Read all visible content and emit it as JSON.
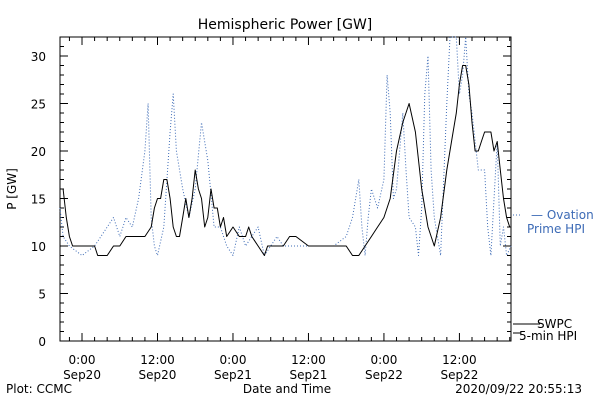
{
  "chart_data": {
    "type": "line",
    "title": "Hemispheric Power [GW]",
    "xlabel": "Date and Time",
    "ylabel": "P [GW]",
    "ylim": [
      0,
      32
    ],
    "xlim_hours": [
      -3.5,
      68.2
    ],
    "yticks": [
      0,
      5,
      10,
      15,
      20,
      25,
      30
    ],
    "xticks": [
      {
        "hour": 0,
        "line1": "0:00",
        "line2": "Sep20"
      },
      {
        "hour": 12,
        "line1": "12:00",
        "line2": "Sep20"
      },
      {
        "hour": 24,
        "line1": "0:00",
        "line2": "Sep21"
      },
      {
        "hour": 36,
        "line1": "12:00",
        "line2": "Sep21"
      },
      {
        "hour": 48,
        "line1": "0:00",
        "line2": "Sep22"
      },
      {
        "hour": 60,
        "line1": "12:00",
        "line2": "Sep22"
      }
    ],
    "series": [
      {
        "name": "SWPC 5-min HPI",
        "legend_line1": "SWPC",
        "legend_line2": "5-min HPI",
        "color": "#000000",
        "style": "solid",
        "points": [
          [
            -3.5,
            16
          ],
          [
            -3,
            16
          ],
          [
            -2.5,
            13
          ],
          [
            -2,
            11
          ],
          [
            -1.5,
            10
          ],
          [
            1,
            10
          ],
          [
            2,
            10
          ],
          [
            2.5,
            9
          ],
          [
            4,
            9
          ],
          [
            5,
            10
          ],
          [
            6,
            10
          ],
          [
            7,
            11
          ],
          [
            8,
            11
          ],
          [
            9,
            11
          ],
          [
            10,
            11
          ],
          [
            11,
            12
          ],
          [
            11.5,
            14
          ],
          [
            12,
            15
          ],
          [
            12.5,
            15
          ],
          [
            13,
            17
          ],
          [
            13.5,
            17
          ],
          [
            14,
            15
          ],
          [
            14.5,
            12
          ],
          [
            15,
            11
          ],
          [
            15.5,
            11
          ],
          [
            16,
            13
          ],
          [
            16.5,
            15
          ],
          [
            17,
            13
          ],
          [
            17.5,
            15
          ],
          [
            18,
            18
          ],
          [
            18.5,
            16
          ],
          [
            19,
            15
          ],
          [
            19.5,
            12
          ],
          [
            20,
            13
          ],
          [
            20.5,
            16
          ],
          [
            21,
            14
          ],
          [
            21.5,
            14
          ],
          [
            22,
            12
          ],
          [
            22.5,
            13
          ],
          [
            23,
            11
          ],
          [
            24,
            12
          ],
          [
            25,
            11
          ],
          [
            26,
            11
          ],
          [
            26.5,
            12
          ],
          [
            27,
            11
          ],
          [
            28,
            10
          ],
          [
            29,
            9
          ],
          [
            29.5,
            10
          ],
          [
            30,
            10
          ],
          [
            31,
            10
          ],
          [
            32,
            10
          ],
          [
            33,
            11
          ],
          [
            34,
            11
          ],
          [
            36,
            10
          ],
          [
            38,
            10
          ],
          [
            40,
            10
          ],
          [
            42,
            10
          ],
          [
            43,
            9
          ],
          [
            44,
            9
          ],
          [
            45,
            10
          ],
          [
            46,
            11
          ],
          [
            47,
            12
          ],
          [
            48,
            13
          ],
          [
            49,
            15
          ],
          [
            50,
            20
          ],
          [
            51,
            23
          ],
          [
            52,
            25
          ],
          [
            53,
            22
          ],
          [
            54,
            16
          ],
          [
            55,
            12
          ],
          [
            56,
            10
          ],
          [
            57,
            13
          ],
          [
            58,
            18
          ],
          [
            59,
            22
          ],
          [
            59.5,
            24
          ],
          [
            60,
            27
          ],
          [
            60.5,
            29
          ],
          [
            61,
            29
          ],
          [
            61.5,
            27
          ],
          [
            62,
            23
          ],
          [
            62.5,
            20
          ],
          [
            63,
            20
          ],
          [
            63.5,
            21
          ],
          [
            64,
            22
          ],
          [
            65,
            22
          ],
          [
            65.5,
            20
          ],
          [
            66,
            21
          ],
          [
            66.5,
            18
          ],
          [
            67,
            15
          ],
          [
            67.5,
            13
          ],
          [
            68,
            12
          ]
        ]
      },
      {
        "name": "Ovation Prime HPI",
        "legend_line1": "— Ovation",
        "legend_line2": "Prime HPI",
        "color": "#3d6bb6",
        "style": "dotted",
        "points": [
          [
            -3.5,
            14
          ],
          [
            -3,
            11
          ],
          [
            -2,
            10
          ],
          [
            0,
            9
          ],
          [
            2,
            10
          ],
          [
            3,
            11
          ],
          [
            4,
            12
          ],
          [
            5,
            13
          ],
          [
            6,
            11
          ],
          [
            7,
            13
          ],
          [
            8,
            12
          ],
          [
            9,
            15
          ],
          [
            10,
            20
          ],
          [
            10.5,
            25
          ],
          [
            11,
            13
          ],
          [
            11.5,
            10
          ],
          [
            12,
            9
          ],
          [
            13,
            12
          ],
          [
            14,
            22
          ],
          [
            14.5,
            26
          ],
          [
            15,
            20
          ],
          [
            16,
            16
          ],
          [
            17,
            13
          ],
          [
            18,
            16
          ],
          [
            19,
            23
          ],
          [
            20,
            19
          ],
          [
            21,
            12
          ],
          [
            22,
            12
          ],
          [
            23,
            10
          ],
          [
            24,
            9
          ],
          [
            25,
            12
          ],
          [
            26,
            10
          ],
          [
            27,
            11
          ],
          [
            28,
            12
          ],
          [
            29,
            9
          ],
          [
            30,
            10
          ],
          [
            31,
            11
          ],
          [
            32,
            10
          ],
          [
            34,
            10
          ],
          [
            36,
            10
          ],
          [
            38,
            10
          ],
          [
            40,
            10
          ],
          [
            42,
            11
          ],
          [
            43,
            13
          ],
          [
            44,
            17
          ],
          [
            44.5,
            12
          ],
          [
            45,
            9
          ],
          [
            45.5,
            13
          ],
          [
            46,
            16
          ],
          [
            47,
            14
          ],
          [
            48,
            17
          ],
          [
            48.5,
            28
          ],
          [
            49,
            24
          ],
          [
            49.5,
            15
          ],
          [
            50,
            16
          ],
          [
            51,
            24
          ],
          [
            51.5,
            18
          ],
          [
            52,
            13
          ],
          [
            53,
            12
          ],
          [
            53.5,
            9
          ],
          [
            54,
            14
          ],
          [
            54.5,
            26
          ],
          [
            55,
            30
          ],
          [
            55.5,
            18
          ],
          [
            56,
            13
          ],
          [
            57,
            9
          ],
          [
            58,
            25
          ],
          [
            58.5,
            32
          ],
          [
            59,
            32
          ],
          [
            59.5,
            32
          ],
          [
            60,
            26
          ],
          [
            60.5,
            28
          ],
          [
            61,
            32
          ],
          [
            61.5,
            26
          ],
          [
            62,
            24
          ],
          [
            63,
            18
          ],
          [
            64,
            18
          ],
          [
            64.5,
            12
          ],
          [
            65,
            9
          ],
          [
            66,
            21
          ],
          [
            66.5,
            10
          ],
          [
            67,
            12
          ],
          [
            67.5,
            9
          ],
          [
            68.2,
            10
          ]
        ]
      }
    ],
    "grid": false,
    "legend_placement": "right"
  },
  "footer": {
    "left": "Plot: CCMC",
    "right": "2020/09/22 20:55:13"
  }
}
